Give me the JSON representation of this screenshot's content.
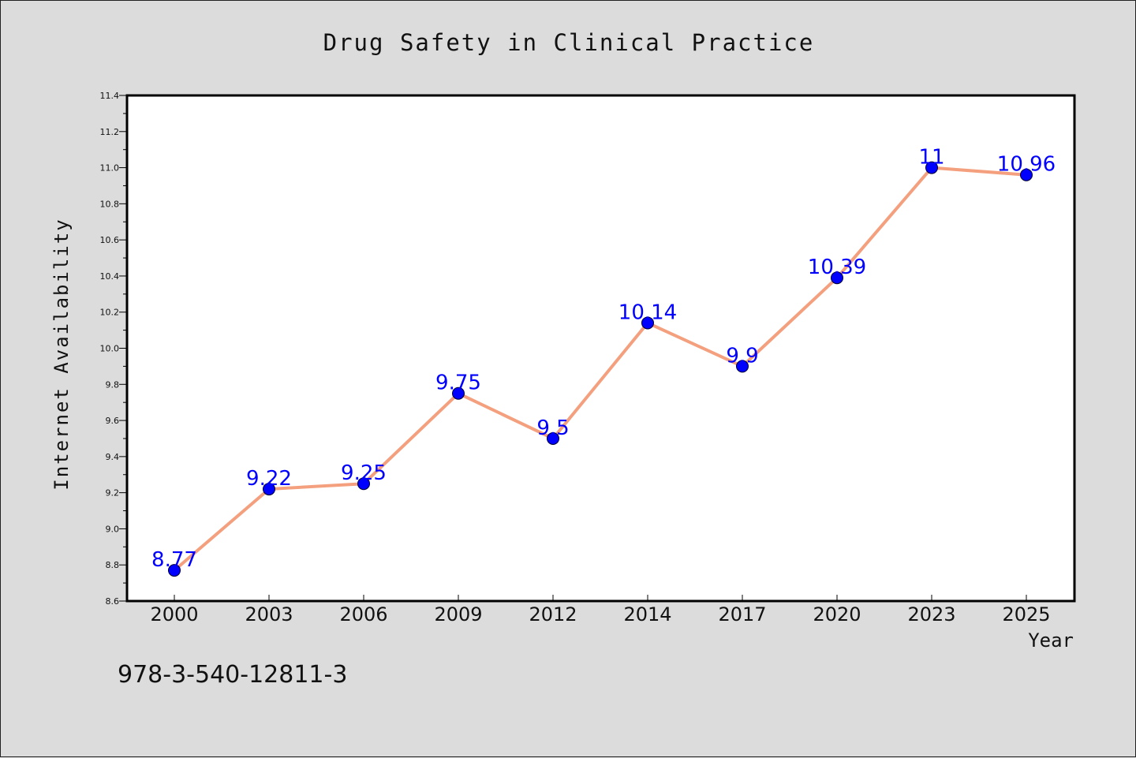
{
  "chart_data": {
    "type": "line",
    "title": "Drug Safety in Clinical Practice",
    "xlabel": "Year",
    "ylabel": "Internet Availability",
    "categories": [
      "2000",
      "2003",
      "2006",
      "2009",
      "2012",
      "2014",
      "2017",
      "2020",
      "2023",
      "2025"
    ],
    "series": [
      {
        "values": [
          8.77,
          9.22,
          9.25,
          9.75,
          9.5,
          10.14,
          9.9,
          10.39,
          11,
          10.96
        ],
        "labels": [
          "8.77",
          "9.22",
          "9.25",
          "9.75",
          "9.5",
          "10.14",
          "9.9",
          "10.39",
          "11",
          "10.96"
        ],
        "line_color": "#f4a07e",
        "marker_color": "#0000ff"
      }
    ],
    "ylim": [
      8.6,
      11.4
    ],
    "yticks": [
      "8.6",
      "8.8",
      "9.0",
      "9.2",
      "9.4",
      "9.6",
      "9.8",
      "10.0",
      "10.2",
      "10.4",
      "10.6",
      "10.8",
      "11.0",
      "11.2",
      "11.4"
    ],
    "grid": false,
    "legend": "none"
  },
  "footer": {
    "isbn": "978-3-540-12811-3"
  },
  "colors": {
    "background": "#dcdcdc",
    "plot_area": "#ffffff",
    "label_text": "#0000ff"
  }
}
